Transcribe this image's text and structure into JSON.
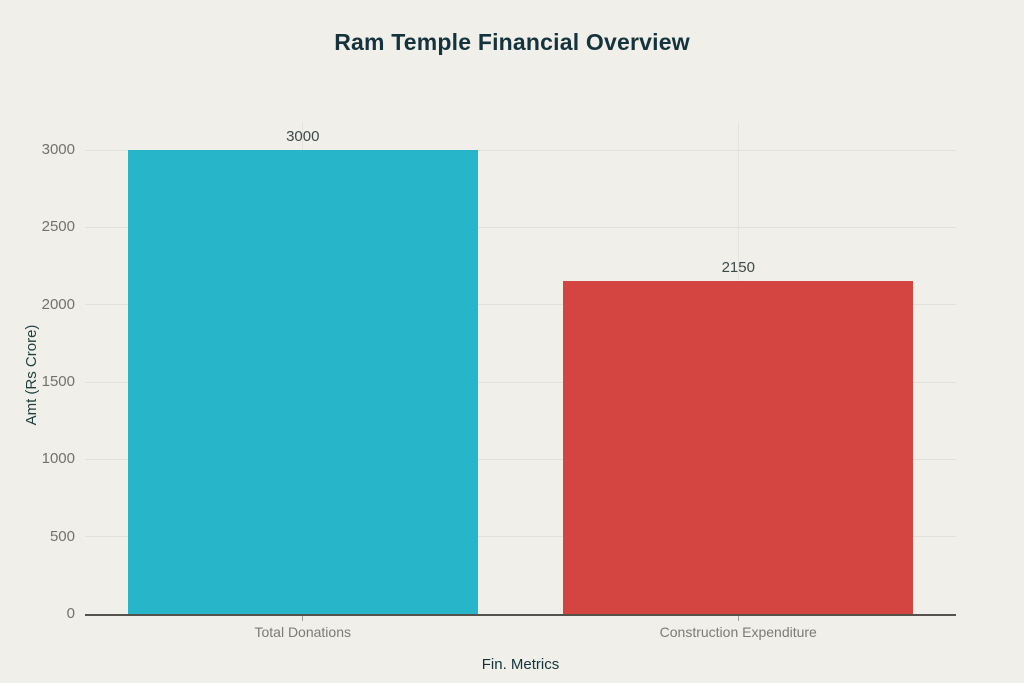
{
  "page": {
    "background_color": "#f0efe9"
  },
  "chart_data": {
    "type": "bar",
    "title": "Ram Temple Financial Overview",
    "xlabel": "Fin. Metrics",
    "ylabel": "Amt (Rs Crore)",
    "categories": [
      "Total Donations",
      "Construction Expenditure"
    ],
    "values": [
      3000,
      2150
    ],
    "data_labels": [
      "3000",
      "2150"
    ],
    "bar_colors": [
      "#26b5c9",
      "#d44542"
    ],
    "ylim": [
      0,
      3000
    ],
    "yticks": [
      0,
      500,
      1000,
      1500,
      2000,
      2500,
      3000
    ],
    "grid": "on",
    "legend": "none"
  },
  "colors": {
    "title_text": "#14333d",
    "axis_title_text": "#1c3f3f",
    "tick_label_text": "#72726c",
    "category_label_text": "#7b7b75",
    "data_label_text": "#3f4a4a",
    "gridline": "#e2e1da",
    "axis_line": "#55524b"
  }
}
